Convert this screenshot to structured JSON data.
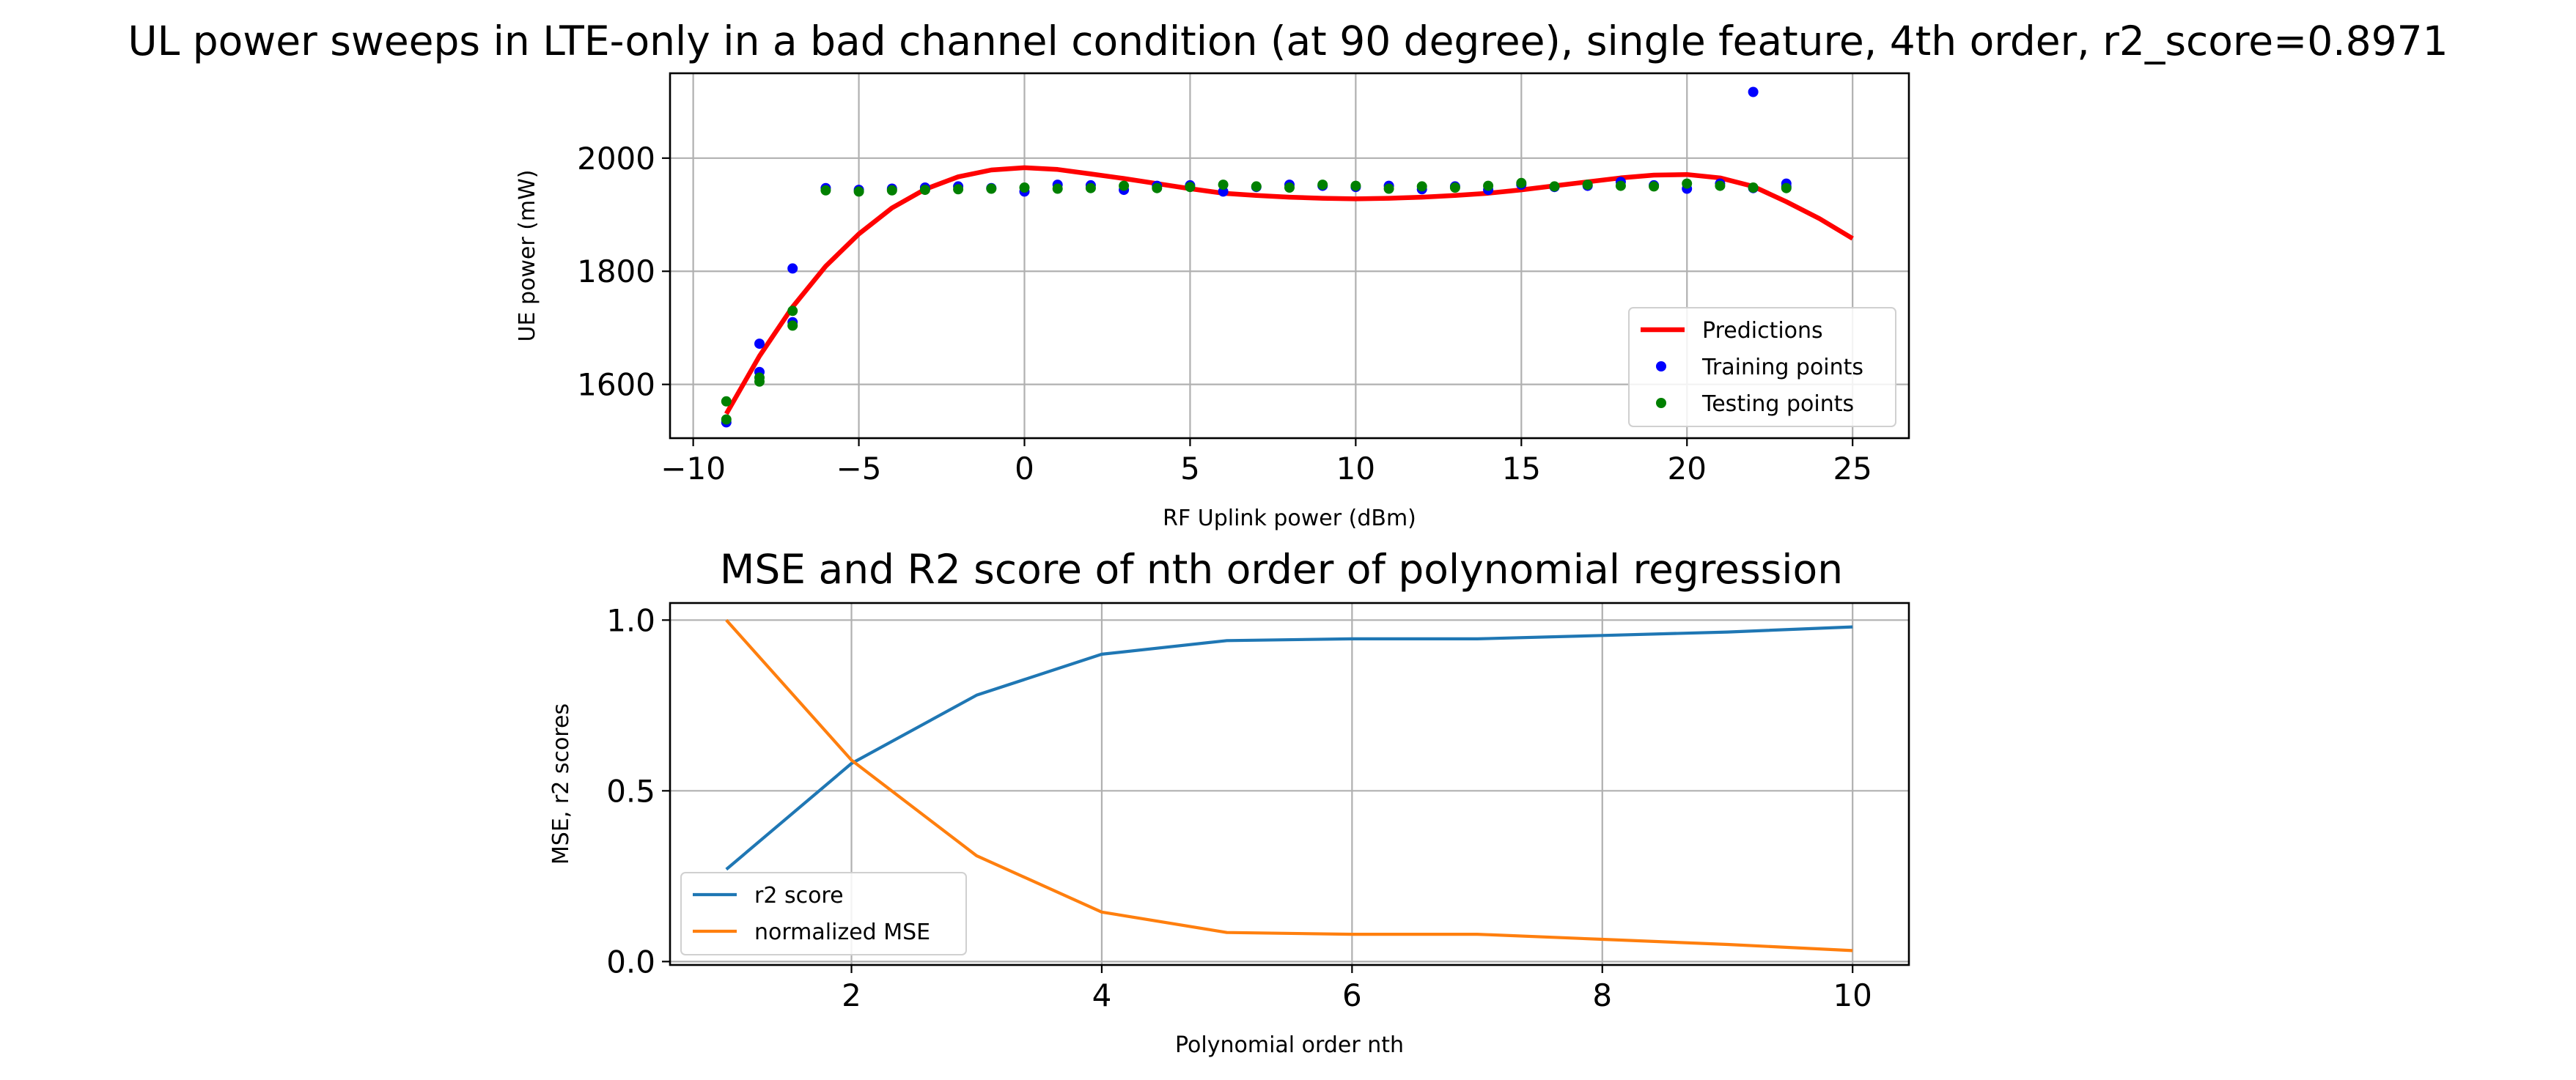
{
  "chart_data": [
    {
      "type": "scatter",
      "title": "UL power sweeps in LTE-only in a bad channel condition (at 90 degree), single feature, 4th order, r2_score=0.8971",
      "xlabel": "RF Uplink power (dBm)",
      "ylabel": "UE power (mW)",
      "xlim": [
        -10.7,
        26.7
      ],
      "ylim": [
        1505,
        2150
      ],
      "xticks": [
        -10,
        -5,
        0,
        5,
        10,
        15,
        20,
        25
      ],
      "xtick_labels": [
        "−10",
        "−5",
        "0",
        "5",
        "10",
        "15",
        "20",
        "25"
      ],
      "yticks": [
        1600,
        1800,
        2000
      ],
      "ytick_labels": [
        "1600",
        "1800",
        "2000"
      ],
      "grid": true,
      "legend_position": "lower right",
      "series": [
        {
          "name": "Predictions",
          "kind": "line",
          "color": "#ff0000",
          "x": [
            -9,
            -8,
            -7,
            -6,
            -5,
            -4,
            -3,
            -2,
            -1,
            0,
            1,
            2,
            3,
            4,
            5,
            6,
            7,
            8,
            9,
            10,
            11,
            12,
            13,
            14,
            15,
            16,
            17,
            18,
            19,
            20,
            21,
            22,
            23,
            24,
            25
          ],
          "y": [
            1548,
            1650,
            1737,
            1809,
            1866,
            1912,
            1945,
            1967,
            1979,
            1983,
            1980,
            1972,
            1964,
            1955,
            1946,
            1938,
            1934,
            1931,
            1929,
            1928,
            1929,
            1931,
            1934,
            1938,
            1944,
            1951,
            1958,
            1965,
            1970,
            1971,
            1965,
            1950,
            1923,
            1893,
            1858
          ]
        },
        {
          "name": "Training points",
          "kind": "scatter",
          "color": "#0000ff",
          "points": [
            [
              -9,
              1533
            ],
            [
              -8,
              1672
            ],
            [
              -8,
              1622
            ],
            [
              -7,
              1805
            ],
            [
              -7,
              1710
            ],
            [
              -6,
              1947
            ],
            [
              -5,
              1944
            ],
            [
              -4,
              1946
            ],
            [
              -3,
              1948
            ],
            [
              -2,
              1950
            ],
            [
              -1,
              1947
            ],
            [
              0,
              1941
            ],
            [
              1,
              1953
            ],
            [
              2,
              1952
            ],
            [
              3,
              1944
            ],
            [
              4,
              1951
            ],
            [
              5,
              1952
            ],
            [
              6,
              1941
            ],
            [
              7,
              1949
            ],
            [
              8,
              1953
            ],
            [
              9,
              1951
            ],
            [
              10,
              1949
            ],
            [
              11,
              1951
            ],
            [
              12,
              1945
            ],
            [
              13,
              1950
            ],
            [
              14,
              1944
            ],
            [
              15,
              1953
            ],
            [
              16,
              1949
            ],
            [
              17,
              1951
            ],
            [
              18,
              1958
            ],
            [
              19,
              1952
            ],
            [
              20,
              1946
            ],
            [
              21,
              1955
            ],
            [
              22,
              2117
            ],
            [
              22,
              1947
            ],
            [
              23,
              1950
            ],
            [
              23,
              1955
            ]
          ]
        },
        {
          "name": "Testing points",
          "kind": "scatter",
          "color": "#008000",
          "points": [
            [
              -9,
              1570
            ],
            [
              -9,
              1538
            ],
            [
              -8,
              1612
            ],
            [
              -8,
              1605
            ],
            [
              -7,
              1730
            ],
            [
              -7,
              1704
            ],
            [
              -6,
              1943
            ],
            [
              -5,
              1941
            ],
            [
              -4,
              1943
            ],
            [
              -3,
              1944
            ],
            [
              -2,
              1945
            ],
            [
              -1,
              1946
            ],
            [
              0,
              1948
            ],
            [
              1,
              1946
            ],
            [
              2,
              1947
            ],
            [
              3,
              1951
            ],
            [
              4,
              1947
            ],
            [
              5,
              1949
            ],
            [
              6,
              1953
            ],
            [
              7,
              1950
            ],
            [
              8,
              1948
            ],
            [
              9,
              1953
            ],
            [
              10,
              1951
            ],
            [
              11,
              1946
            ],
            [
              12,
              1950
            ],
            [
              13,
              1948
            ],
            [
              14,
              1951
            ],
            [
              15,
              1956
            ],
            [
              16,
              1950
            ],
            [
              17,
              1953
            ],
            [
              18,
              1951
            ],
            [
              19,
              1950
            ],
            [
              20,
              1955
            ],
            [
              21,
              1951
            ],
            [
              22,
              1948
            ],
            [
              23,
              1947
            ]
          ]
        }
      ]
    },
    {
      "type": "line",
      "title": "MSE and R2 score of nth order of polynomial regression",
      "xlabel": "Polynomial order nth",
      "ylabel": "MSE, r2 scores",
      "xlim": [
        0.55,
        10.45
      ],
      "ylim": [
        -0.01,
        1.05
      ],
      "xticks": [
        2,
        4,
        6,
        8,
        10
      ],
      "xtick_labels": [
        "2",
        "4",
        "6",
        "8",
        "10"
      ],
      "yticks": [
        0,
        0.5,
        1
      ],
      "ytick_labels": [
        "0.0",
        "0.5",
        "1.0"
      ],
      "grid": true,
      "legend_position": "lower left",
      "x": [
        1,
        2,
        3,
        4,
        5,
        6,
        7,
        8,
        9,
        10
      ],
      "series": [
        {
          "name": "r2 score",
          "color": "#1f77b4",
          "values": [
            0.27,
            0.58,
            0.78,
            0.9,
            0.94,
            0.945,
            0.945,
            0.955,
            0.965,
            0.98
          ]
        },
        {
          "name": "normalized MSE",
          "color": "#ff7f0e",
          "values": [
            1.0,
            0.59,
            0.31,
            0.145,
            0.085,
            0.08,
            0.08,
            0.065,
            0.05,
            0.032
          ]
        }
      ]
    }
  ]
}
